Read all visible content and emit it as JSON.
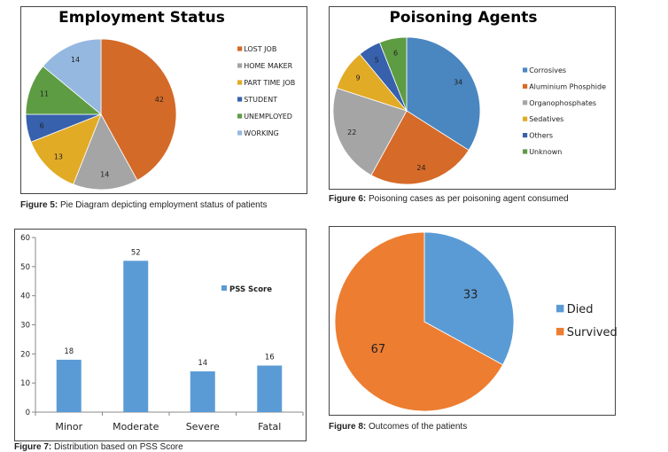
{
  "chart_data": [
    {
      "type": "pie",
      "title": "Employment Status",
      "caption_label": "Figure 5:",
      "caption_text": "Pie Diagram depicting employment status of patients",
      "legend_position": "right",
      "slices": [
        {
          "label": "LOST JOB",
          "value": 42,
          "color": "#d46a28"
        },
        {
          "label": "HOME MAKER",
          "value": 14,
          "color": "#a5a5a5"
        },
        {
          "label": "PART TIME JOB",
          "value": 13,
          "color": "#e2ab26"
        },
        {
          "label": "STUDENT",
          "value": 6,
          "color": "#3761ad"
        },
        {
          "label": "UNEMPLOYED",
          "value": 11,
          "color": "#5e9c43"
        },
        {
          "label": "WORKING",
          "value": 14,
          "color": "#95b8e0"
        }
      ]
    },
    {
      "type": "pie",
      "title": "Poisoning Agents",
      "caption_label": "Figure 6:",
      "caption_text": "Poisoning cases as per poisoning agent consumed",
      "legend_position": "right",
      "slices": [
        {
          "label": "Corrosives",
          "value": 34,
          "color": "#4a87c0"
        },
        {
          "label": "Aluminium Phosphide",
          "value": 24,
          "color": "#d66a28"
        },
        {
          "label": "Organophosphates",
          "value": 22,
          "color": "#a5a5a5"
        },
        {
          "label": "Sedatives",
          "value": 9,
          "color": "#e2ab26"
        },
        {
          "label": "Others",
          "value": 5,
          "color": "#3761ad"
        },
        {
          "label": "Unknown",
          "value": 6,
          "color": "#5e9c43"
        }
      ]
    },
    {
      "type": "bar",
      "title": "",
      "caption_label": "Figure 7:",
      "caption_text": "Distribution based on PSS Score",
      "categories": [
        "Minor",
        "Moderate",
        "Severe",
        "Fatal"
      ],
      "series": [
        {
          "name": "PSS Score",
          "values": [
            18,
            52,
            14,
            16
          ],
          "color": "#5b9bd5"
        }
      ],
      "ylim": [
        0,
        60
      ],
      "yticks": [
        0,
        10,
        20,
        30,
        40,
        50,
        60
      ],
      "grid": false,
      "legend_position": "right"
    },
    {
      "type": "pie",
      "title": "",
      "caption_label": "Figure 8:",
      "caption_text": "Outcomes of the patients",
      "legend_position": "right",
      "slices": [
        {
          "label": "Died",
          "value": 33,
          "color": "#5b9bd5"
        },
        {
          "label": "Survived",
          "value": 67,
          "color": "#ed7d31"
        }
      ]
    }
  ]
}
